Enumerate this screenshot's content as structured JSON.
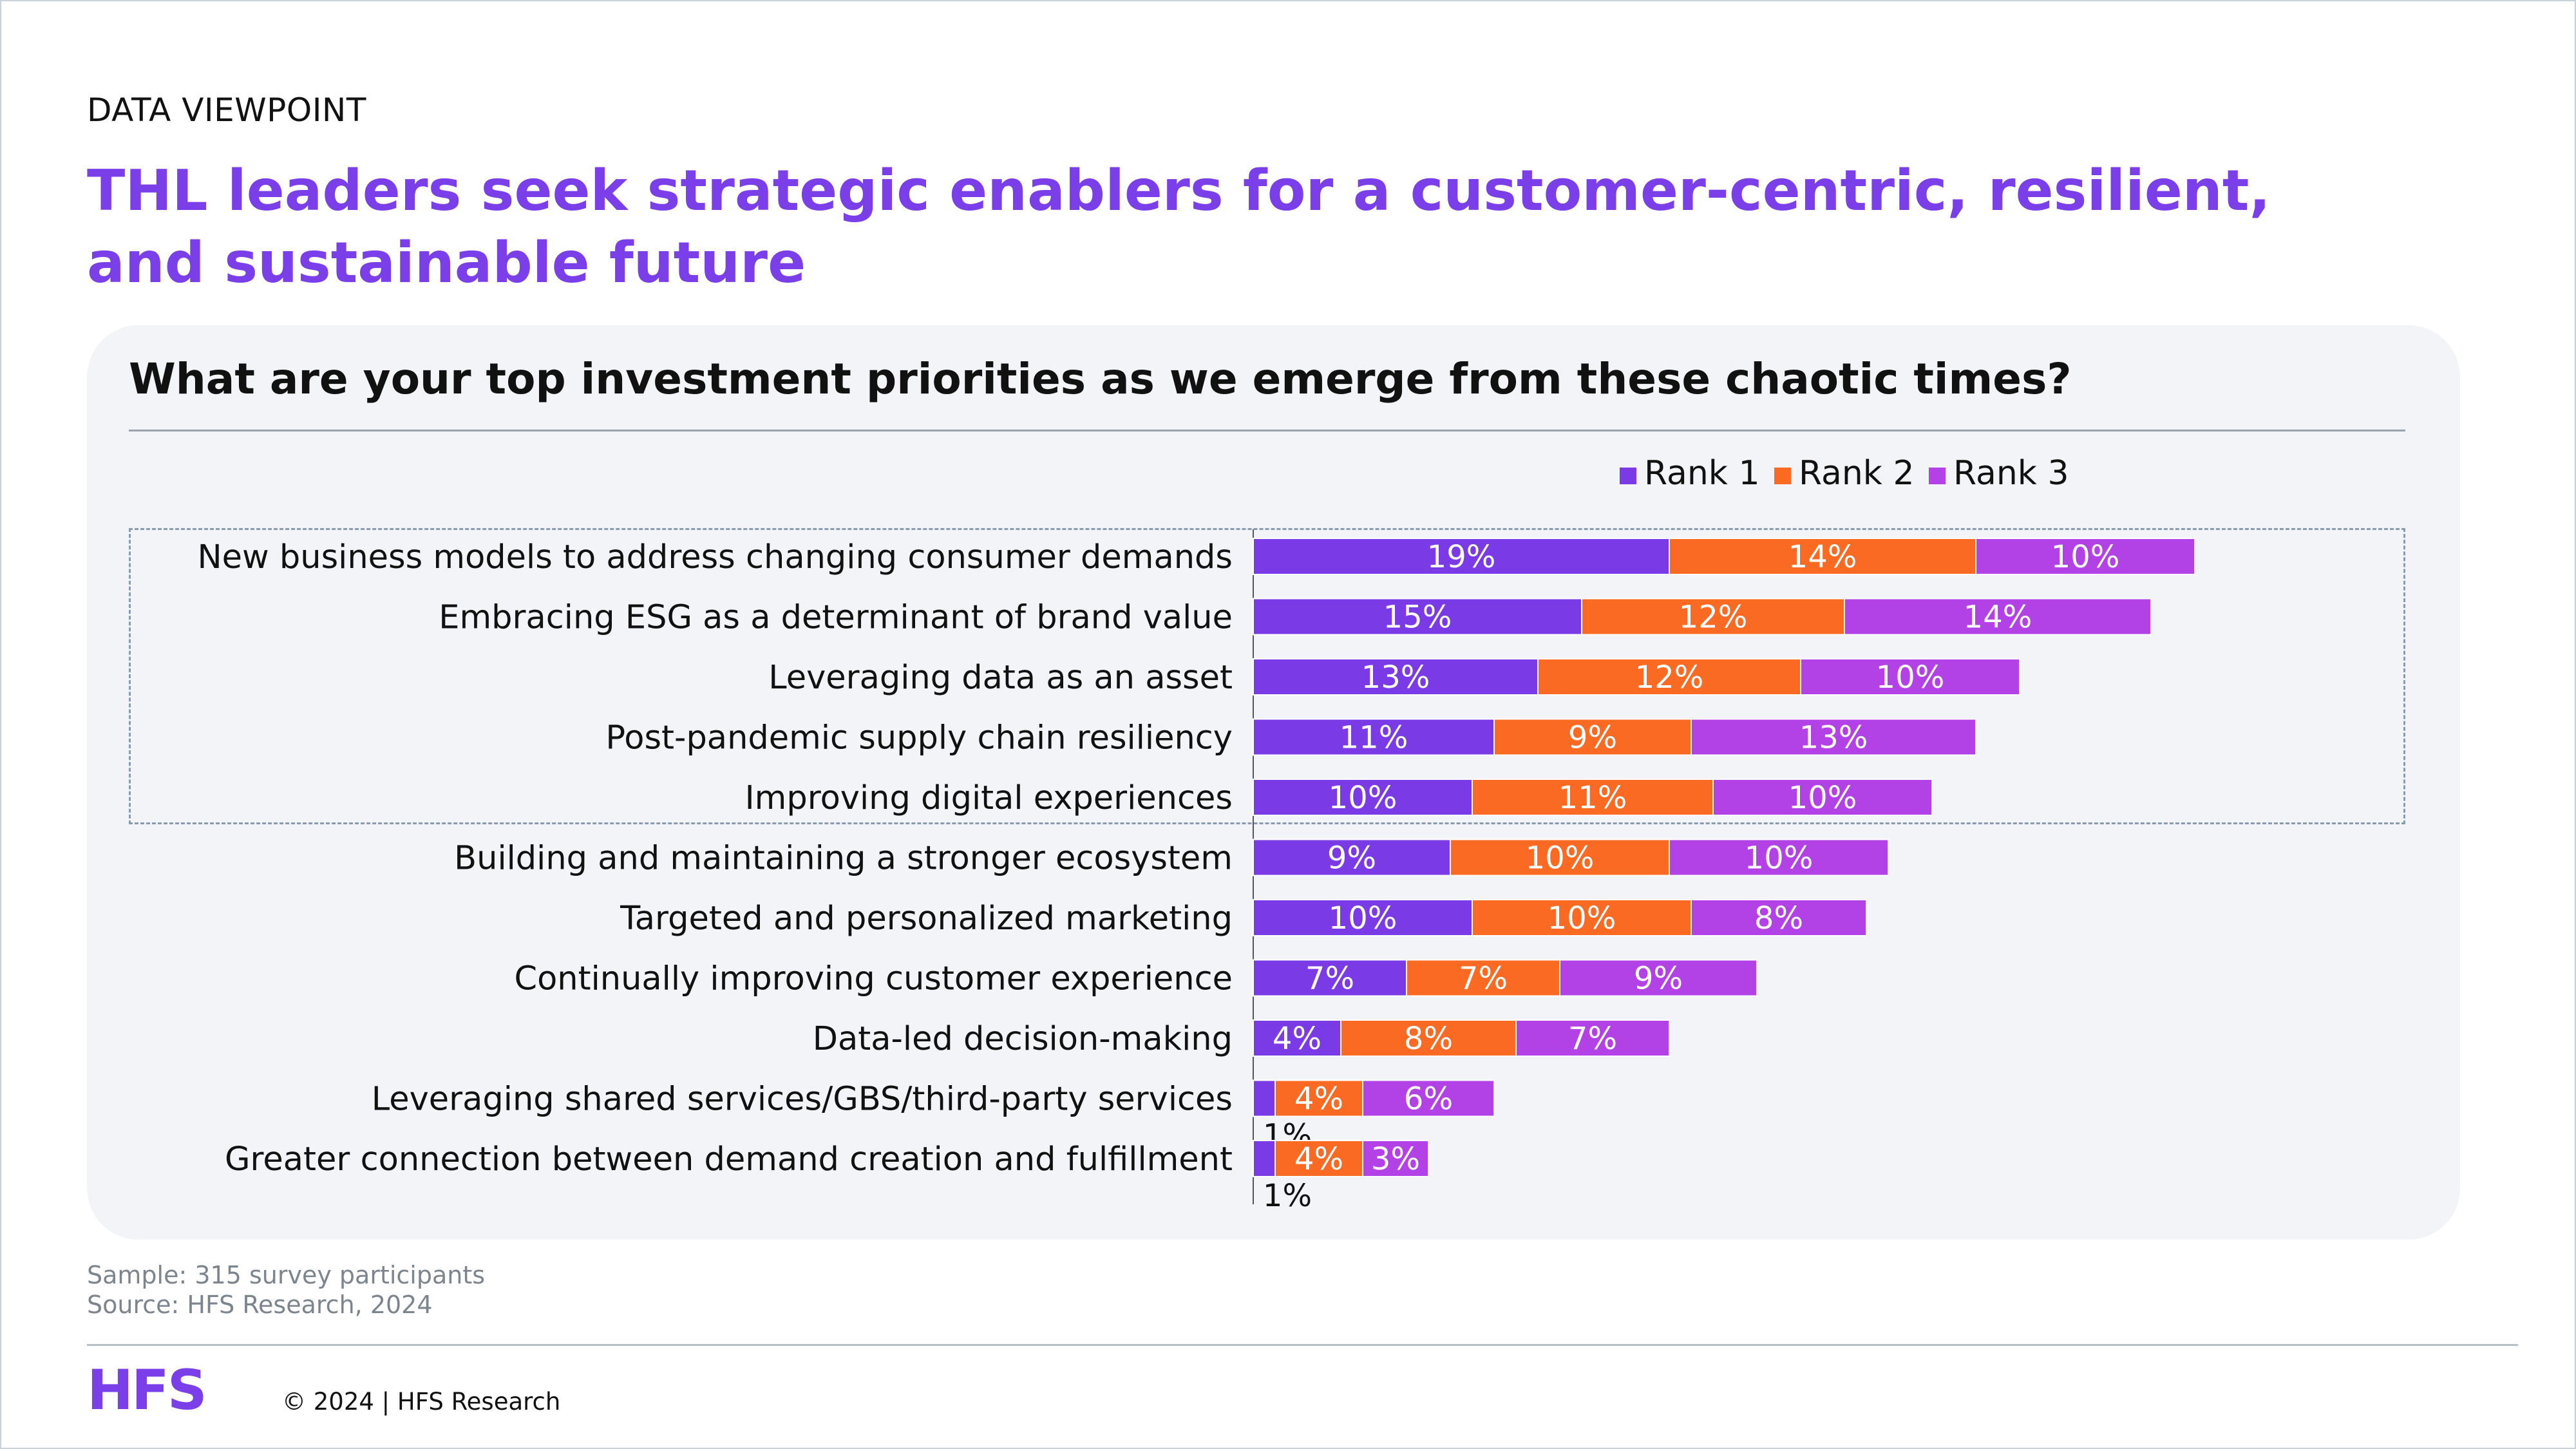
{
  "eyebrow": "DATA VIEWPOINT",
  "title": "THL leaders seek strategic enablers for a customer-centric, resilient, and sustainable future",
  "colors": {
    "accent": "#7a3fe8",
    "rank1": "#7a3ae6",
    "rank2": "#fb6a22",
    "rank3": "#b342e6"
  },
  "chart_data": {
    "type": "bar",
    "orientation": "horizontal",
    "stacked": true,
    "title": "What are your top investment priorities as we emerge from these chaotic times?",
    "xlabel": "",
    "ylabel": "",
    "legend_placement": "top-right",
    "grid": false,
    "categories": [
      "New business models to address changing consumer demands",
      "Embracing ESG as a determinant of brand value",
      "Leveraging data as an asset",
      "Post-pandemic supply chain resiliency",
      "Improving digital experiences",
      "Building and maintaining a stronger ecosystem",
      "Targeted and personalized marketing",
      "Continually improving customer experience",
      "Data-led decision-making",
      "Leveraging shared services/GBS/third-party services",
      "Greater connection between demand creation and fulfillment"
    ],
    "series": [
      {
        "name": "Rank 1",
        "values": [
          19,
          15,
          13,
          11,
          10,
          9,
          10,
          7,
          4,
          1,
          1
        ]
      },
      {
        "name": "Rank 2",
        "values": [
          14,
          12,
          12,
          9,
          11,
          10,
          10,
          7,
          8,
          4,
          4
        ]
      },
      {
        "name": "Rank 3",
        "values": [
          10,
          14,
          10,
          13,
          10,
          10,
          8,
          9,
          7,
          6,
          3
        ]
      }
    ],
    "value_suffix": "%",
    "highlighted_top_count": 5
  },
  "footer": {
    "sample": "Sample: 315 survey participants",
    "source": "Source: HFS Research, 2024",
    "logo_text": "HFS",
    "copyright": "© 2024 | HFS Research"
  }
}
